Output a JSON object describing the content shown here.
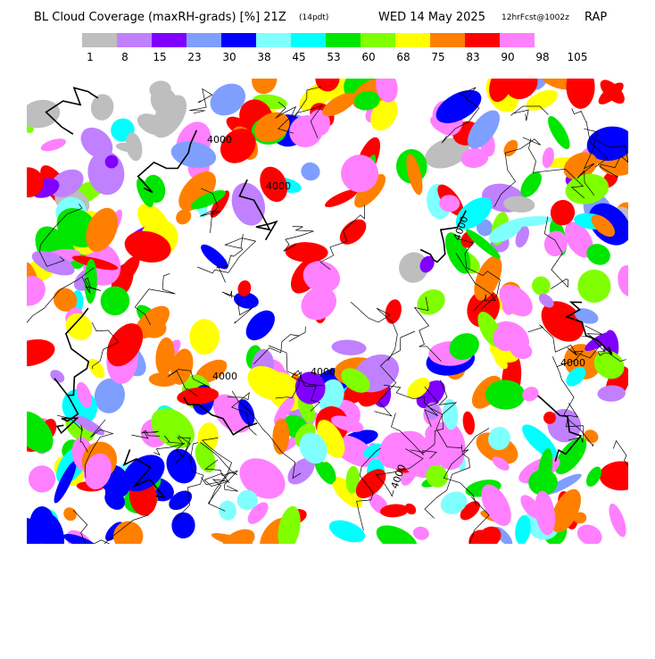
{
  "header": {
    "title": "BL Cloud Coverage (maxRH-grads) [%] 21Z",
    "local_time": "(14pdt)",
    "date": "WED 14 May 2025",
    "forecast": "12hrFcst@1002z",
    "model": "RAP"
  },
  "legend": {
    "colors": [
      "#bebebe",
      "#c080ff",
      "#8000ff",
      "#7f9fff",
      "#0000ff",
      "#80ffff",
      "#00ffff",
      "#00e600",
      "#80ff00",
      "#ffff00",
      "#ff8000",
      "#ff0000",
      "#ff80ff"
    ],
    "labels": [
      1,
      8,
      15,
      23,
      30,
      38,
      45,
      53,
      60,
      68,
      75,
      83,
      90,
      98,
      105
    ]
  },
  "map": {
    "contour_labels": [
      "4000",
      "4000",
      "4000",
      "4000",
      "4000",
      "4000",
      "4000"
    ]
  }
}
